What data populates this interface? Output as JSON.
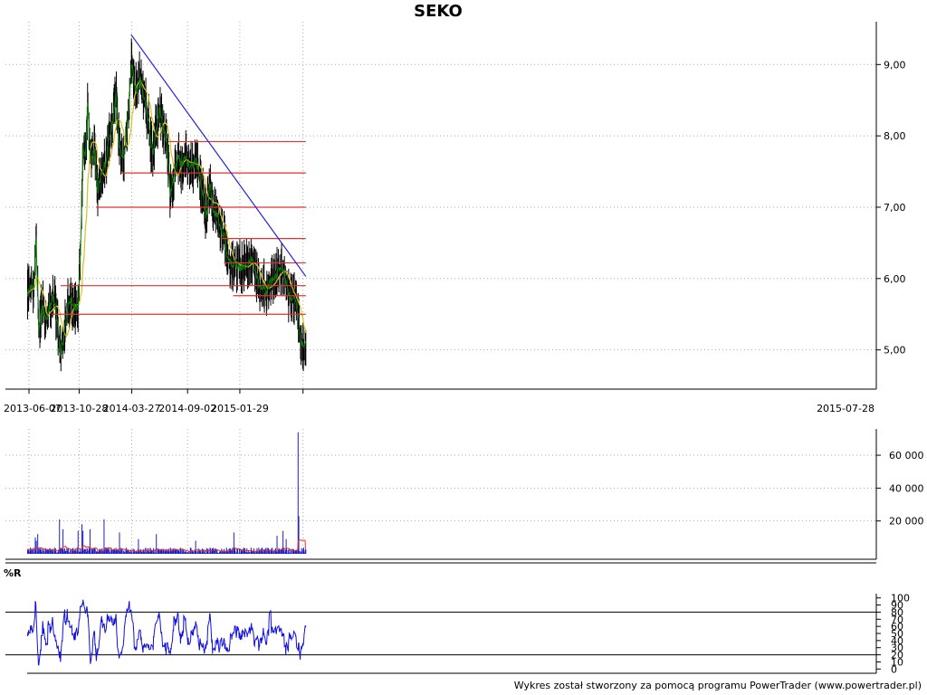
{
  "chart_data": {
    "title": "SEKO",
    "credit": "Wykres został stworzony za pomocą programu PowerTrader (www.powertrader.pl)",
    "colors": {
      "background": "#ffffff",
      "grid": "#aaaaaa",
      "candle": "#000000",
      "close_line": "#008000",
      "moving_average": "#d4c21a",
      "support_resistance": "#e03030",
      "trendline": "#2020e0",
      "volume_bar": "#2020c0",
      "volume_average": "#e03030",
      "williams_r": "#1010e0"
    },
    "price_panel": {
      "type": "line",
      "x_tick_labels": [
        "2013-06-07",
        "2013-10-28",
        "2014-03-27",
        "2014-09-02",
        "2015-01-29",
        "2015-07-28"
      ],
      "y_tick_labels": [
        "5,00",
        "6,00",
        "7,00",
        "8,00",
        "9,00"
      ],
      "y_ticks": [
        5,
        6,
        7,
        8,
        9
      ],
      "ylim": [
        4.45,
        9.6
      ],
      "grid": true,
      "close_anchors": [
        [
          "2013-06-01",
          5.7
        ],
        [
          "2013-06-07",
          5.85
        ],
        [
          "2013-06-20",
          5.85
        ],
        [
          "2013-06-27",
          6.6
        ],
        [
          "2013-07-05",
          5.3
        ],
        [
          "2013-07-15",
          5.6
        ],
        [
          "2013-07-25",
          5.4
        ],
        [
          "2013-08-05",
          5.6
        ],
        [
          "2013-08-15",
          5.75
        ],
        [
          "2013-08-25",
          5.5
        ],
        [
          "2013-09-05",
          4.95
        ],
        [
          "2013-09-15",
          5.2
        ],
        [
          "2013-09-25",
          5.6
        ],
        [
          "2013-10-05",
          5.75
        ],
        [
          "2013-10-15",
          5.6
        ],
        [
          "2013-10-25",
          5.6
        ],
        [
          "2013-11-02",
          6.5
        ],
        [
          "2013-11-08",
          7.8
        ],
        [
          "2013-11-15",
          7.7
        ],
        [
          "2013-11-22",
          8.5
        ],
        [
          "2013-11-30",
          7.6
        ],
        [
          "2013-12-10",
          7.85
        ],
        [
          "2013-12-20",
          7.2
        ],
        [
          "2013-12-30",
          7.5
        ],
        [
          "2014-01-10",
          7.6
        ],
        [
          "2014-01-20",
          7.9
        ],
        [
          "2014-02-01",
          8.2
        ],
        [
          "2014-02-10",
          8.6
        ],
        [
          "2014-02-20",
          7.8
        ],
        [
          "2014-03-05",
          7.7
        ],
        [
          "2014-03-15",
          8.2
        ],
        [
          "2014-03-27",
          9.0
        ],
        [
          "2014-04-10",
          8.6
        ],
        [
          "2014-04-20",
          8.8
        ],
        [
          "2014-05-01",
          8.55
        ],
        [
          "2014-05-15",
          8.2
        ],
        [
          "2014-05-25",
          7.7
        ],
        [
          "2014-06-05",
          8.1
        ],
        [
          "2014-06-15",
          8.4
        ],
        [
          "2014-06-25",
          8.1
        ],
        [
          "2014-07-05",
          7.9
        ],
        [
          "2014-07-15",
          7.2
        ],
        [
          "2014-07-25",
          7.4
        ],
        [
          "2014-08-05",
          7.75
        ],
        [
          "2014-08-15",
          7.6
        ],
        [
          "2014-08-25",
          7.7
        ],
        [
          "2014-09-05",
          7.6
        ],
        [
          "2014-09-15",
          7.55
        ],
        [
          "2014-09-25",
          7.7
        ],
        [
          "2014-10-05",
          7.5
        ],
        [
          "2014-10-15",
          7.2
        ],
        [
          "2014-10-25",
          6.8
        ],
        [
          "2014-11-05",
          7.35
        ],
        [
          "2014-11-15",
          6.9
        ],
        [
          "2014-11-25",
          6.9
        ],
        [
          "2014-12-05",
          6.7
        ],
        [
          "2014-12-15",
          6.6
        ],
        [
          "2014-12-25",
          6.3
        ],
        [
          "2015-01-05",
          6.2
        ],
        [
          "2015-01-15",
          6.2
        ],
        [
          "2015-01-29",
          6.15
        ],
        [
          "2015-02-10",
          6.15
        ],
        [
          "2015-02-20",
          6.2
        ],
        [
          "2015-03-05",
          6.3
        ],
        [
          "2015-03-15",
          6.1
        ],
        [
          "2015-03-25",
          5.9
        ],
        [
          "2015-04-05",
          5.9
        ],
        [
          "2015-04-15",
          5.8
        ],
        [
          "2015-04-25",
          5.95
        ],
        [
          "2015-05-05",
          6.0
        ],
        [
          "2015-05-15",
          6.05
        ],
        [
          "2015-05-25",
          6.2
        ],
        [
          "2015-06-05",
          6.05
        ],
        [
          "2015-06-15",
          5.8
        ],
        [
          "2015-06-25",
          5.75
        ],
        [
          "2015-07-05",
          5.75
        ],
        [
          "2015-07-15",
          5.5
        ],
        [
          "2015-07-22",
          5.1
        ],
        [
          "2015-07-28",
          5.05
        ],
        [
          "2015-08-05",
          5.1
        ]
      ],
      "horizontal_lines": [
        {
          "from": "2014-07-10",
          "to": "2015-08-05",
          "y": 7.92
        },
        {
          "from": "2014-02-25",
          "to": "2015-08-05",
          "y": 7.48
        },
        {
          "from": "2013-12-15",
          "to": "2015-08-05",
          "y": 7.0
        },
        {
          "from": "2014-12-05",
          "to": "2015-08-05",
          "y": 6.56
        },
        {
          "from": "2014-12-15",
          "to": "2015-08-05",
          "y": 6.22
        },
        {
          "from": "2013-09-05",
          "to": "2015-08-05",
          "y": 5.9
        },
        {
          "from": "2015-01-10",
          "to": "2015-08-05",
          "y": 5.76
        },
        {
          "from": "2013-08-10",
          "to": "2015-08-05",
          "y": 5.5
        }
      ],
      "trendline": {
        "from": [
          "2014-03-25",
          9.42
        ],
        "to": [
          "2015-08-05",
          6.03
        ]
      }
    },
    "volume_panel": {
      "type": "bar",
      "y_tick_labels": [
        "20 000",
        "40 000",
        "60 000"
      ],
      "y_ticks": [
        20000,
        40000,
        60000
      ],
      "ylim": [
        0,
        76000
      ],
      "spikes": [
        [
          "2013-06-25",
          10000
        ],
        [
          "2013-06-28",
          8000
        ],
        [
          "2013-07-02",
          12000
        ],
        [
          "2013-09-02",
          21000
        ],
        [
          "2013-09-12",
          15000
        ],
        [
          "2013-10-25",
          14000
        ],
        [
          "2013-11-05",
          18000
        ],
        [
          "2013-11-08",
          14000
        ],
        [
          "2013-11-28",
          15000
        ],
        [
          "2014-01-07",
          21000
        ],
        [
          "2014-02-20",
          13000
        ],
        [
          "2014-04-15",
          9000
        ],
        [
          "2014-06-05",
          12000
        ],
        [
          "2014-09-25",
          8000
        ],
        [
          "2015-01-10",
          21000
        ],
        [
          "2015-01-12",
          13000
        ],
        [
          "2015-04-25",
          9000
        ],
        [
          "2015-05-15",
          11000
        ],
        [
          "2015-06-01",
          14000
        ],
        [
          "2015-06-10",
          9000
        ],
        [
          "2015-07-14",
          74000
        ],
        [
          "2015-07-16",
          23000
        ],
        [
          "2015-08-02",
          10000
        ]
      ]
    },
    "indicator_panel": {
      "type": "line",
      "label": "%R",
      "y_tick_labels": [
        "0",
        "10",
        "20",
        "30",
        "40",
        "50",
        "60",
        "70",
        "80",
        "90",
        "100"
      ],
      "y_ticks": [
        0,
        10,
        20,
        30,
        40,
        50,
        60,
        70,
        80,
        90,
        100
      ],
      "reference_lines": [
        20,
        80
      ],
      "ylim": [
        -6,
        106
      ]
    }
  }
}
